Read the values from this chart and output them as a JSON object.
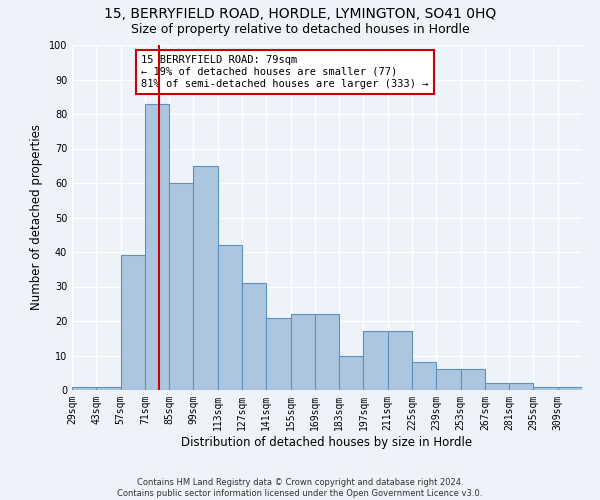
{
  "title_line1": "15, BERRYFIELD ROAD, HORDLE, LYMINGTON, SO41 0HQ",
  "title_line2": "Size of property relative to detached houses in Hordle",
  "xlabel": "Distribution of detached houses by size in Hordle",
  "ylabel": "Number of detached properties",
  "footnote": "Contains HM Land Registry data © Crown copyright and database right 2024.\nContains public sector information licensed under the Open Government Licence v3.0.",
  "bin_labels": [
    "29sqm",
    "43sqm",
    "57sqm",
    "71sqm",
    "85sqm",
    "99sqm",
    "113sqm",
    "127sqm",
    "141sqm",
    "155sqm",
    "169sqm",
    "183sqm",
    "197sqm",
    "211sqm",
    "225sqm",
    "239sqm",
    "253sqm",
    "267sqm",
    "281sqm",
    "295sqm",
    "309sqm"
  ],
  "bar_values": [
    1,
    1,
    39,
    83,
    60,
    65,
    42,
    31,
    21,
    22,
    22,
    10,
    17,
    17,
    8,
    6,
    6,
    2,
    2,
    1,
    1
  ],
  "bin_starts": [
    29,
    43,
    57,
    71,
    85,
    99,
    113,
    127,
    141,
    155,
    169,
    183,
    197,
    211,
    225,
    239,
    253,
    267,
    281,
    295,
    309
  ],
  "bin_width": 14,
  "bar_color": "#adc6e0",
  "bar_edge_color": "#5b92c4",
  "property_size": 79,
  "vline_color": "#cc0000",
  "annotation_text": "15 BERRYFIELD ROAD: 79sqm\n← 19% of detached houses are smaller (77)\n81% of semi-detached houses are larger (333) →",
  "annotation_box_color": "#ffffff",
  "annotation_box_edge_color": "#cc0000",
  "ylim": [
    0,
    100
  ],
  "background_color": "#eef2f9",
  "grid_color": "#ffffff",
  "title_fontsize": 10,
  "subtitle_fontsize": 9,
  "axis_label_fontsize": 8.5,
  "tick_fontsize": 7,
  "annot_fontsize": 7.5
}
